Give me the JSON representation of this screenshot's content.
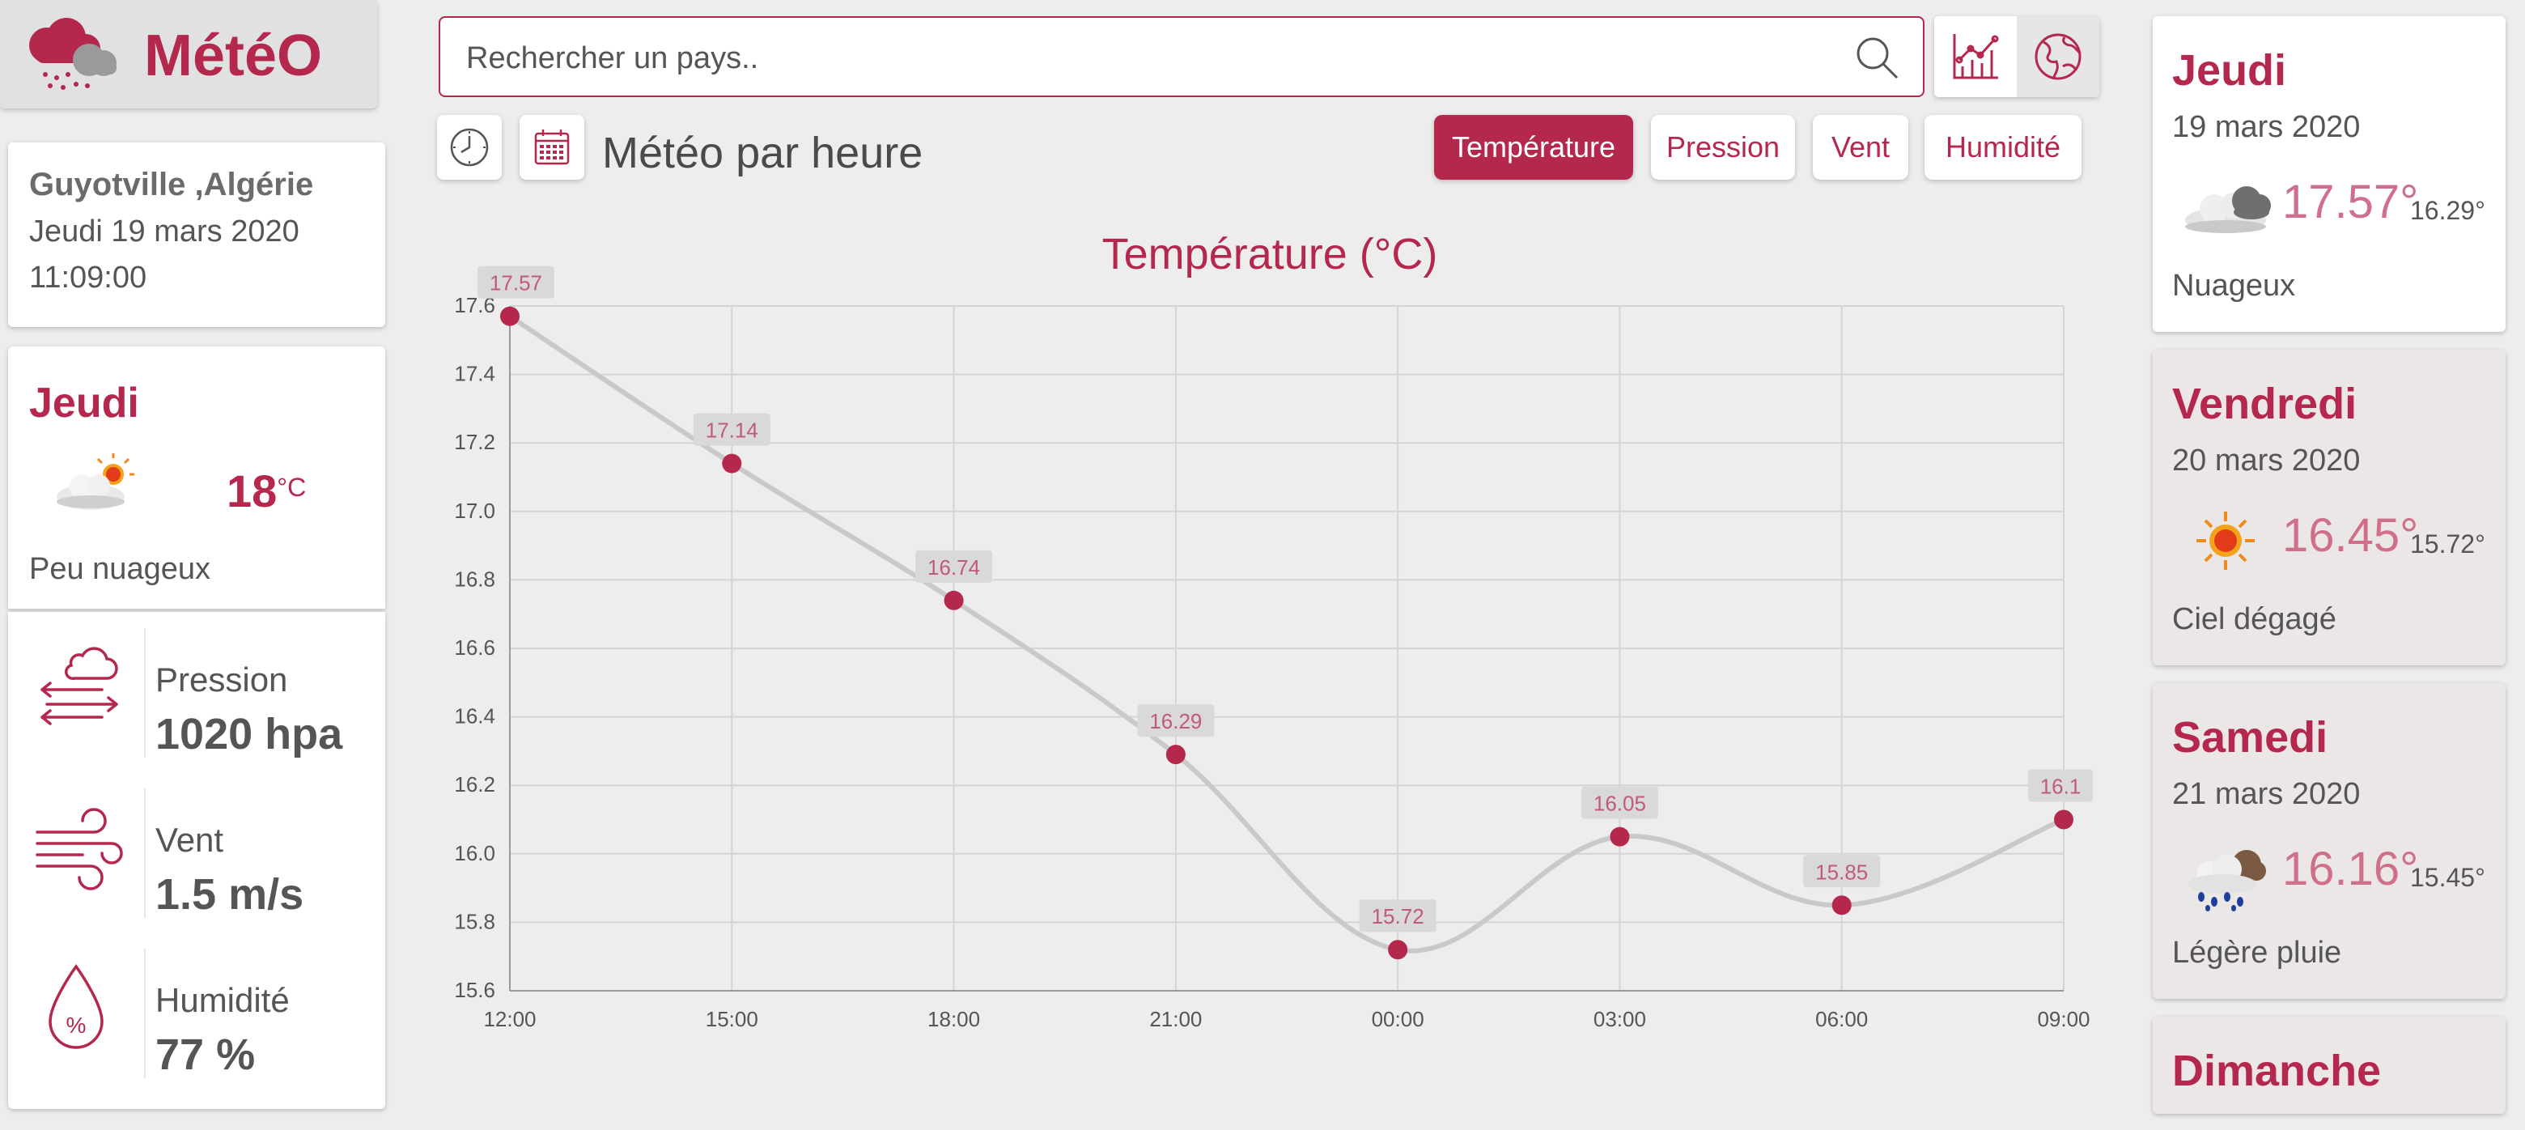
{
  "brand": {
    "name": "MétéO"
  },
  "location": {
    "city": "Guyotville ,Algérie",
    "date": "Jeudi 19 mars 2020",
    "time": "11:09:00"
  },
  "today": {
    "day": "Jeudi",
    "temp": "18",
    "unit": "°C",
    "desc": "Peu nuageux",
    "icon": "partly-cloudy-icon"
  },
  "stats": [
    {
      "label": "Pression",
      "value": "1020 hpa",
      "icon": "pressure-icon"
    },
    {
      "label": "Vent",
      "value": "1.5 m/s",
      "icon": "wind-icon"
    },
    {
      "label": "Humidité",
      "value": "77 %",
      "icon": "humidity-icon"
    }
  ],
  "search": {
    "placeholder": "Rechercher un pays.."
  },
  "toolbar": {
    "title": "Météo par heure",
    "tabs": [
      {
        "label": "Température",
        "active": true
      },
      {
        "label": "Pression",
        "active": false
      },
      {
        "label": "Vent",
        "active": false
      },
      {
        "label": "Humidité",
        "active": false
      }
    ]
  },
  "forecast": [
    {
      "day": "Jeudi",
      "date": "19 mars 2020",
      "max": "17.57°",
      "min": "16.29°",
      "desc": "Nuageux",
      "icon": "cloudy-icon"
    },
    {
      "day": "Vendredi",
      "date": "20 mars 2020",
      "max": "16.45°",
      "min": "15.72°",
      "desc": "Ciel dégagé",
      "icon": "sun-icon"
    },
    {
      "day": "Samedi",
      "date": "21 mars 2020",
      "max": "16.16°",
      "min": "15.45°",
      "desc": "Légère pluie",
      "icon": "light-rain-icon"
    },
    {
      "day": "Dimanche",
      "date": "",
      "max": "",
      "min": "",
      "desc": "",
      "icon": ""
    }
  ],
  "colors": {
    "accent": "#b5284d",
    "line": "#c9c9c9",
    "grid": "#d4d4d4"
  },
  "chart_data": {
    "type": "line",
    "title": "Température (°C)",
    "x": [
      "12:00",
      "15:00",
      "18:00",
      "21:00",
      "00:00",
      "03:00",
      "06:00",
      "09:00"
    ],
    "values": [
      17.57,
      17.14,
      16.74,
      16.29,
      15.72,
      16.05,
      15.85,
      16.1
    ],
    "data_labels": [
      "17.57",
      "17.14",
      "16.74",
      "16.29",
      "15.72",
      "16.05",
      "15.85",
      "16.1"
    ],
    "yticks": [
      "15.6",
      "15.8",
      "16.0",
      "16.2",
      "16.4",
      "16.6",
      "16.8",
      "17.0",
      "17.2",
      "17.4",
      "17.6"
    ],
    "ylim": [
      15.6,
      17.6
    ],
    "grid": true,
    "xlabel": "",
    "ylabel": ""
  }
}
